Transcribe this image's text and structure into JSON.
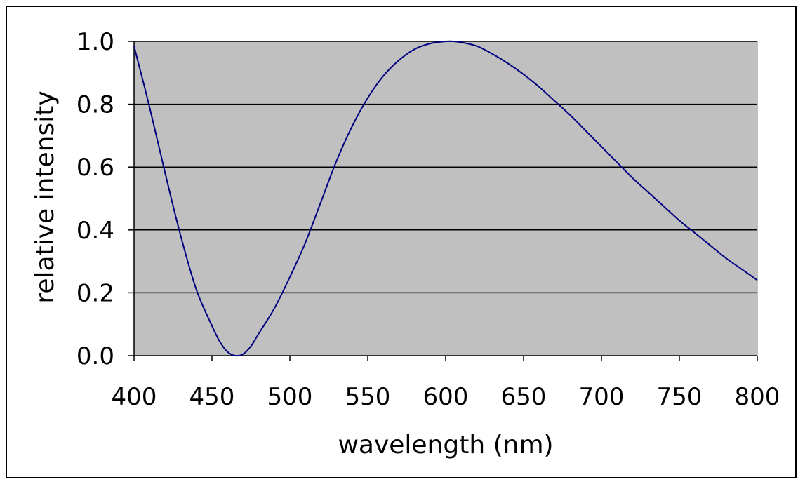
{
  "chart_data": {
    "type": "line",
    "xlabel": "wavelength (nm)",
    "ylabel": "relative intensity",
    "xlim": [
      400,
      800
    ],
    "ylim": [
      0,
      1
    ],
    "x_ticks": [
      400,
      450,
      500,
      550,
      600,
      650,
      700,
      750,
      800
    ],
    "y_ticks": [
      0.0,
      0.2,
      0.4,
      0.6,
      0.8,
      1.0
    ],
    "x_tick_labels": [
      "400",
      "450",
      "500",
      "550",
      "600",
      "650",
      "700",
      "750",
      "800"
    ],
    "y_tick_labels": [
      "0.0",
      "0.2",
      "0.4",
      "0.6",
      "0.8",
      "1.0"
    ],
    "grid": "horizontal",
    "legend": "none",
    "colors": {
      "plot_background": "#c0c0c0",
      "line": "#000080",
      "grid": "#000000"
    },
    "series": [
      {
        "x": [
          400,
          410,
          420,
          430,
          440,
          450,
          455,
          460,
          465,
          470,
          475,
          480,
          490,
          500,
          510,
          520,
          530,
          540,
          550,
          560,
          570,
          580,
          590,
          600,
          605,
          610,
          620,
          630,
          640,
          650,
          660,
          670,
          680,
          690,
          700,
          710,
          720,
          730,
          740,
          750,
          760,
          770,
          780,
          790,
          800
        ],
        "y": [
          0.985,
          0.79,
          0.58,
          0.38,
          0.21,
          0.095,
          0.045,
          0.012,
          0.0,
          0.005,
          0.03,
          0.07,
          0.15,
          0.25,
          0.36,
          0.49,
          0.62,
          0.73,
          0.82,
          0.89,
          0.94,
          0.975,
          0.993,
          1.0,
          1.0,
          0.997,
          0.985,
          0.96,
          0.93,
          0.895,
          0.855,
          0.81,
          0.765,
          0.715,
          0.665,
          0.615,
          0.565,
          0.52,
          0.475,
          0.43,
          0.39,
          0.35,
          0.31,
          0.275,
          0.24
        ]
      }
    ]
  }
}
